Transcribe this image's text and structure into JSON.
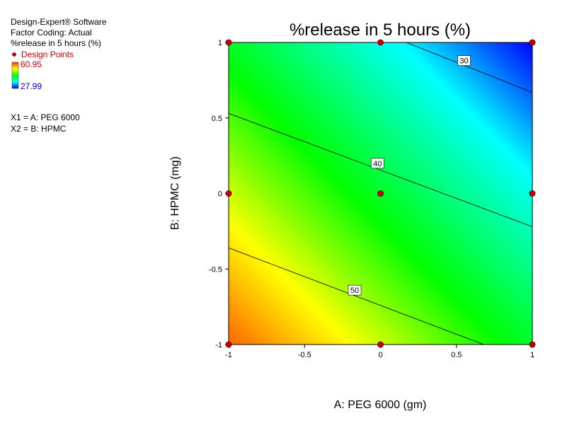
{
  "info_panel": {
    "software": "Design-Expert® Software",
    "coding": "Factor Coding: Actual",
    "response": "%release in 5 hours (%)",
    "design_points_label": "Design Points",
    "legend_max": "60.95",
    "legend_min": "27.99",
    "x1_label": "X1 = A: PEG 6000",
    "x2_label": "X2 = B: HPMC"
  },
  "colors": {
    "design_point": "#cc0000",
    "legend_max_text": "#cc0000",
    "legend_min_text": "#0000cc",
    "contour_line": "#000000"
  },
  "chart_data": {
    "type": "heatmap",
    "title": "%release in 5 hours (%)",
    "xlabel": "A: PEG 6000 (gm)",
    "ylabel": "B: HPMC (mg)",
    "xlim": [
      -1,
      1
    ],
    "ylim": [
      -1,
      1
    ],
    "x_ticks": [
      "-1",
      "-0.5",
      "0",
      "0.5",
      "1"
    ],
    "y_ticks": [
      "-1",
      "-0.5",
      "0",
      "0.5",
      "1"
    ],
    "x_tick_values": [
      -1,
      -0.5,
      0,
      0.5,
      1
    ],
    "y_tick_values": [
      -1,
      -0.5,
      0,
      0.5,
      1
    ],
    "response_range": [
      27.99,
      60.95
    ],
    "color_scale": [
      "#0000ff",
      "#00ffff",
      "#00ff00",
      "#ffff00",
      "#ff4000"
    ],
    "contours": [
      {
        "level": "30",
        "points": [
          [
            0.17,
            1.0
          ],
          [
            1.0,
            0.67
          ]
        ],
        "label_at": [
          0.55,
          0.88
        ]
      },
      {
        "level": "40",
        "points": [
          [
            -1.0,
            0.53
          ],
          [
            1.0,
            -0.22
          ]
        ],
        "label_at": [
          -0.02,
          0.2
        ]
      },
      {
        "level": "50",
        "points": [
          [
            -1.0,
            -0.36
          ],
          [
            0.68,
            -1.0
          ]
        ],
        "label_at": [
          -0.17,
          -0.64
        ]
      }
    ],
    "design_points": [
      [
        -1,
        1
      ],
      [
        0,
        1
      ],
      [
        1,
        1
      ],
      [
        -1,
        0
      ],
      [
        0,
        0
      ],
      [
        1,
        0
      ],
      [
        -1,
        -1
      ],
      [
        0,
        -1
      ],
      [
        1,
        -1
      ]
    ]
  }
}
